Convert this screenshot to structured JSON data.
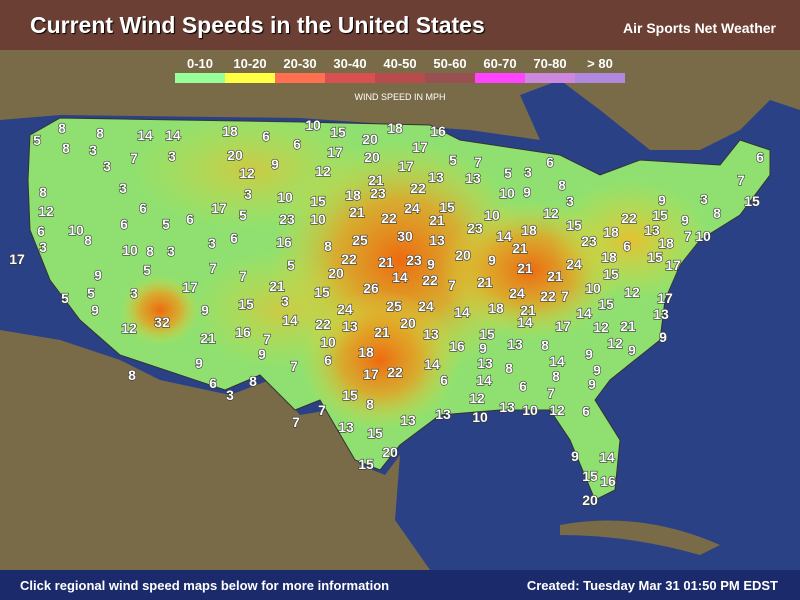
{
  "header": {
    "title": "Current Wind Speeds in the United States",
    "brand": "Air Sports Net Weather"
  },
  "legend": {
    "title": "WIND SPEED IN MPH",
    "items": [
      {
        "label": "0-10",
        "color": "#99ff99"
      },
      {
        "label": "10-20",
        "color": "#ffff44"
      },
      {
        "label": "20-30",
        "color": "#ff7050"
      },
      {
        "label": "30-40",
        "color": "#d85050"
      },
      {
        "label": "40-50",
        "color": "#b84c4c"
      },
      {
        "label": "50-60",
        "color": "#985050"
      },
      {
        "label": "60-70",
        "color": "#ff44ff"
      },
      {
        "label": "70-80",
        "color": "#cc88dd"
      },
      {
        "label": "> 80",
        "color": "#b088dd"
      }
    ]
  },
  "colors": {
    "ocean": "#2b4185",
    "land": "#7a6b48",
    "us_base": "#8fe070"
  },
  "stations": [
    5,
    8,
    8,
    8,
    3,
    14,
    14,
    3,
    18,
    6,
    20,
    6,
    9,
    12,
    10,
    15,
    20,
    18,
    16,
    17,
    20,
    17,
    5,
    7,
    12,
    21,
    17,
    6,
    6,
    7,
    3,
    8,
    12,
    6,
    3,
    3,
    6,
    6,
    10,
    8,
    5,
    6,
    17,
    5,
    3,
    10,
    23,
    15,
    10,
    18,
    23,
    21,
    22,
    22,
    24,
    13,
    13,
    5,
    3,
    10,
    9,
    8,
    3,
    12,
    21,
    15,
    10,
    23,
    14,
    18,
    21,
    15,
    9,
    15,
    9,
    3,
    8,
    7,
    15,
    22,
    18,
    6,
    23,
    13,
    18,
    7,
    10,
    15,
    17,
    18,
    15,
    24,
    21,
    17,
    9,
    10,
    8,
    3,
    5,
    3,
    6,
    16,
    8,
    25,
    30,
    13,
    9,
    20,
    9,
    21,
    21,
    22,
    7,
    10,
    15,
    12,
    17,
    7,
    7,
    21,
    5,
    3,
    20,
    22,
    21,
    14,
    22,
    7,
    23,
    26,
    25,
    24,
    14,
    18,
    24,
    21,
    15,
    24,
    5,
    5,
    9,
    3,
    17,
    9,
    15,
    14,
    12,
    32,
    21,
    16,
    7,
    9,
    22,
    13,
    21,
    20,
    13,
    15,
    14,
    17,
    14,
    12,
    21,
    13,
    9,
    12,
    9,
    10,
    6,
    18,
    17,
    22,
    14,
    16,
    9,
    13,
    13,
    8,
    9,
    14,
    9,
    6,
    8,
    3,
    7,
    8,
    6,
    14,
    8,
    6,
    8,
    9,
    9,
    7,
    15,
    8,
    7,
    7,
    13,
    15,
    13,
    13,
    12,
    10,
    13,
    10,
    12,
    6,
    20,
    15,
    9,
    14,
    15,
    16,
    20
  ],
  "footer": {
    "left": "Click regional wind speed maps below for more information",
    "right": "Created: Tuesday Mar 31 01:50 PM EDST"
  }
}
